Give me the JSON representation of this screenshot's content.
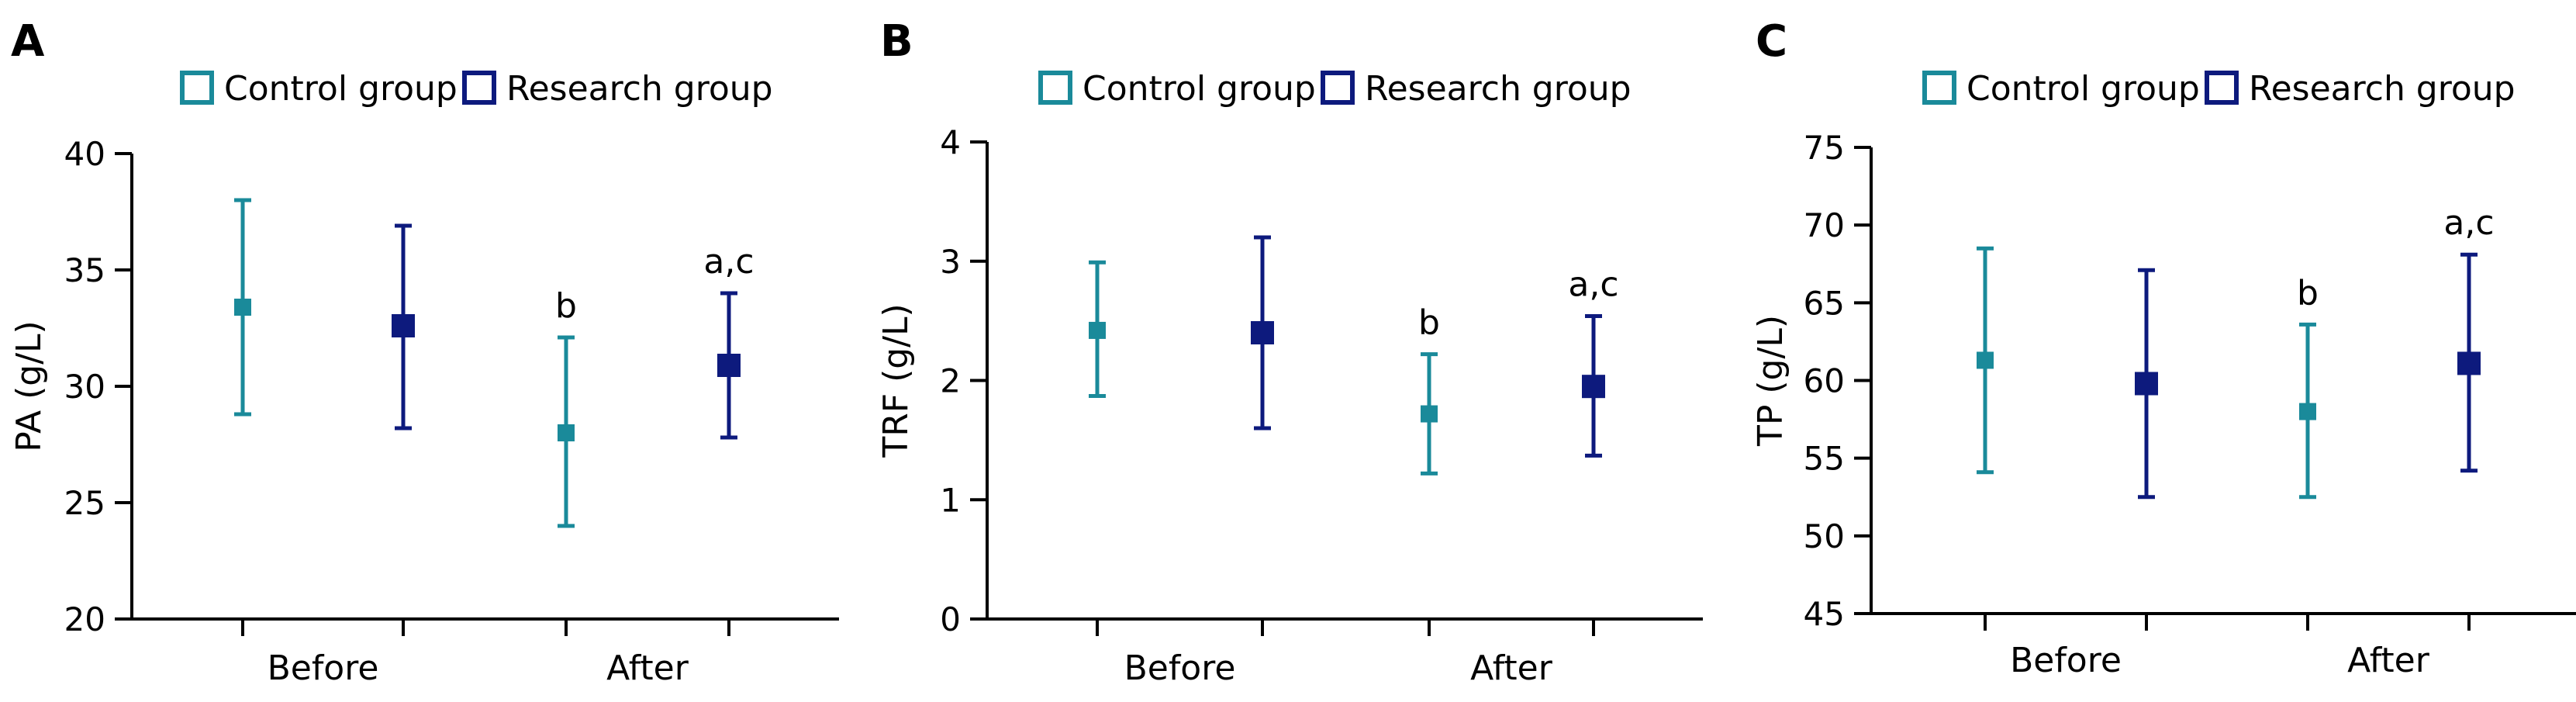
{
  "colors": {
    "control": "#1a8a9a",
    "research": "#0d1a7d"
  },
  "legend": {
    "control_label": "Control group",
    "research_label": "Research group"
  },
  "chart_data": [
    {
      "panel": "A",
      "type": "scatter",
      "ylabel": "PA (g/L)",
      "ylim": [
        20,
        40
      ],
      "yticks": [
        20,
        25,
        30,
        35,
        40
      ],
      "categories": [
        "Before",
        "After"
      ],
      "series": [
        {
          "name": "Control group",
          "values": [
            33.4,
            28.0
          ],
          "lower": [
            28.8,
            24.0
          ],
          "upper": [
            38.0,
            32.1
          ]
        },
        {
          "name": "Research group",
          "values": [
            32.6,
            30.9
          ],
          "lower": [
            28.2,
            27.8
          ],
          "upper": [
            36.9,
            34.0
          ]
        }
      ],
      "annotations": [
        {
          "series": 0,
          "category": 1,
          "text": "b"
        },
        {
          "series": 1,
          "category": 1,
          "text": "a,c"
        }
      ]
    },
    {
      "panel": "B",
      "type": "scatter",
      "ylabel": "TRF (g/L)",
      "ylim": [
        0,
        4
      ],
      "yticks": [
        0,
        1,
        2,
        3,
        4
      ],
      "categories": [
        "Before",
        "After"
      ],
      "series": [
        {
          "name": "Control group",
          "values": [
            2.42,
            1.72
          ],
          "lower": [
            1.87,
            1.22
          ],
          "upper": [
            2.99,
            2.22
          ]
        },
        {
          "name": "Research group",
          "values": [
            2.4,
            1.95
          ],
          "lower": [
            1.6,
            1.37
          ],
          "upper": [
            3.2,
            2.54
          ]
        }
      ],
      "annotations": [
        {
          "series": 0,
          "category": 1,
          "text": "b"
        },
        {
          "series": 1,
          "category": 1,
          "text": "a,c"
        }
      ]
    },
    {
      "panel": "C",
      "type": "scatter",
      "ylabel": "TP (g/L)",
      "ylim": [
        45,
        75
      ],
      "yticks": [
        45,
        50,
        55,
        60,
        65,
        70,
        75
      ],
      "categories": [
        "Before",
        "After"
      ],
      "series": [
        {
          "name": "Control group",
          "values": [
            61.3,
            58.0
          ],
          "lower": [
            54.1,
            52.5
          ],
          "upper": [
            68.5,
            63.6
          ]
        },
        {
          "name": "Research group",
          "values": [
            59.8,
            61.1
          ],
          "lower": [
            52.5,
            54.2
          ],
          "upper": [
            67.1,
            68.1
          ]
        }
      ],
      "annotations": [
        {
          "series": 0,
          "category": 1,
          "text": "b"
        },
        {
          "series": 1,
          "category": 1,
          "text": "a,c"
        }
      ]
    }
  ]
}
